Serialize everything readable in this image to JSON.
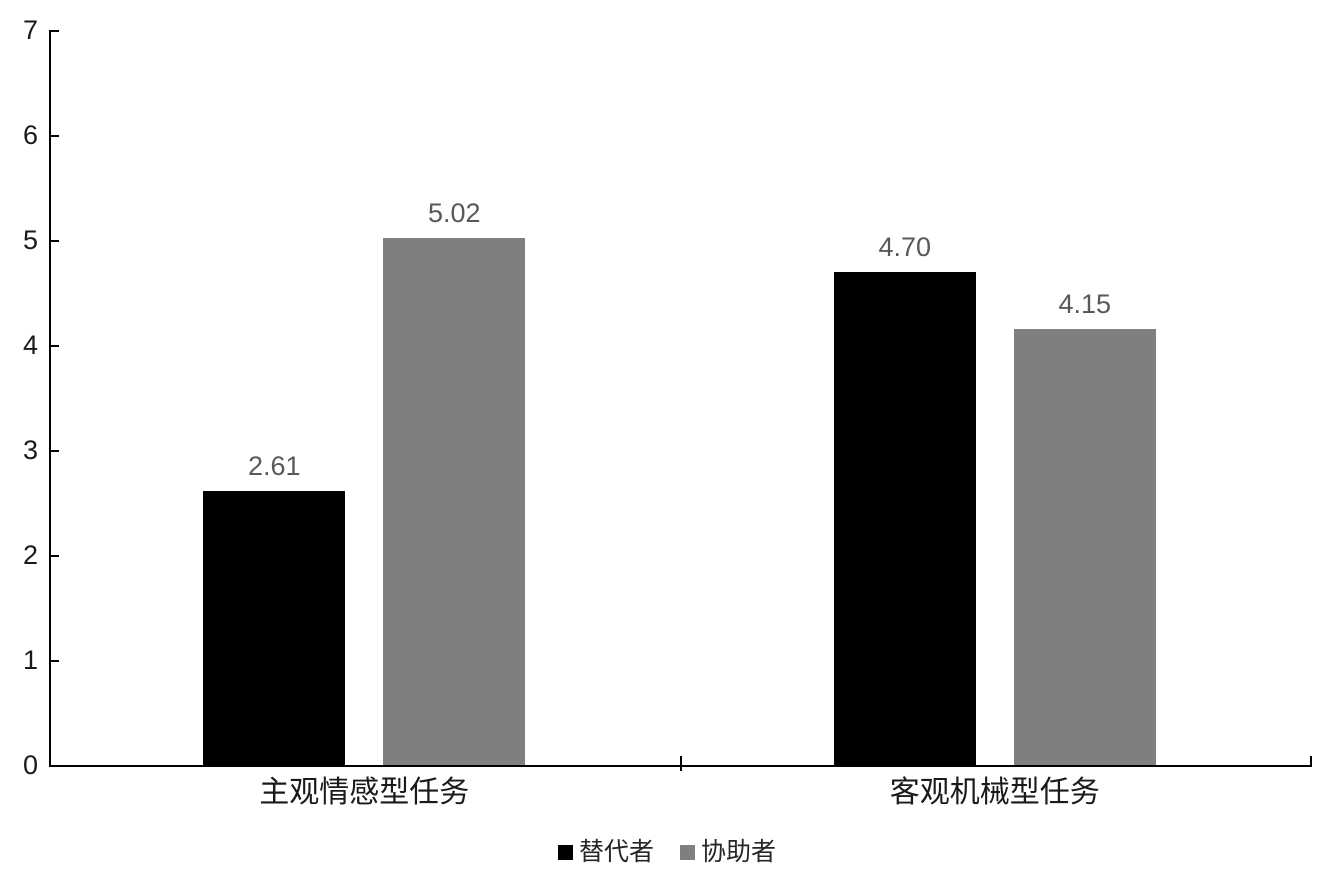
{
  "chart_data": {
    "type": "bar",
    "categories": [
      "主观情感型任务",
      "客观机械型任务"
    ],
    "series": [
      {
        "name": "替代者",
        "color": "#000000",
        "values": [
          2.61,
          4.7
        ],
        "labels": [
          "2.61",
          "4.70"
        ]
      },
      {
        "name": "协助者",
        "color": "#7f7f7f",
        "values": [
          5.02,
          4.15
        ],
        "labels": [
          "5.02",
          "4.15"
        ]
      }
    ],
    "title": "",
    "xlabel": "",
    "ylabel": "",
    "ylim": [
      0,
      7
    ],
    "yticks": [
      0,
      1,
      2,
      3,
      4,
      5,
      6,
      7
    ],
    "grid": false,
    "legend_position": "bottom",
    "value_label_color": "#595959",
    "axis_label_color": "#1a1a1a",
    "axis_line_color": "#000000",
    "background_color": "#ffffff"
  }
}
